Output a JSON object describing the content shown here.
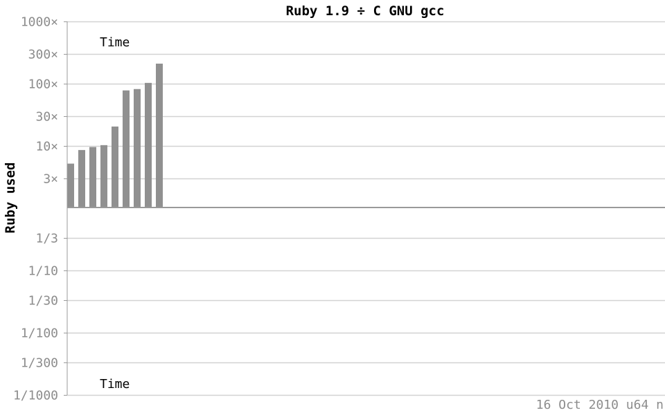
{
  "chart_data": {
    "type": "bar",
    "title": "Ruby 1.9 ÷ C GNU gcc",
    "ylabel": "Ruby used",
    "scale": "log",
    "ylim": [
      0.001,
      1000
    ],
    "baseline": 1,
    "y_ticks": [
      {
        "value": 1000,
        "label": "1000×"
      },
      {
        "value": 300,
        "label": "300×"
      },
      {
        "value": 100,
        "label": "100×"
      },
      {
        "value": 30,
        "label": "30×"
      },
      {
        "value": 10,
        "label": "10×"
      },
      {
        "value": 3,
        "label": "3×"
      },
      {
        "value": 0.3333,
        "label": "1/3"
      },
      {
        "value": 0.1,
        "label": "1/10"
      },
      {
        "value": 0.0333,
        "label": "1/30"
      },
      {
        "value": 0.01,
        "label": "1/100"
      },
      {
        "value": 0.00333,
        "label": "1/300"
      },
      {
        "value": 0.001,
        "label": "1/1000"
      }
    ],
    "upper_label": "Time",
    "lower_label": "Time",
    "values": [
      5.2,
      8.6,
      9.6,
      10.3,
      20.5,
      78,
      82,
      103,
      210
    ],
    "bar_color": "#909090",
    "grid": true,
    "footer": "16 Oct 2010 u64 n"
  }
}
